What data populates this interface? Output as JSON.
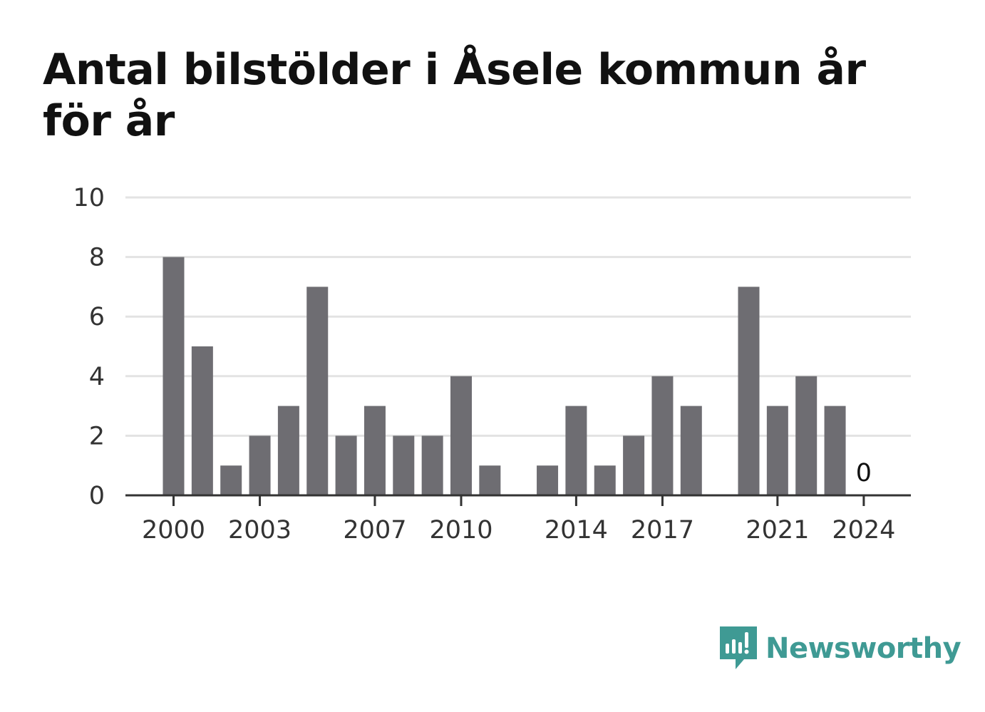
{
  "title": "Antal bilstölder i Åsele kommun år för år",
  "brand": {
    "name": "Newsworthy",
    "icon": "newsworthy-logo-icon",
    "color": "#3f9a94"
  },
  "colors": {
    "bar": "#6e6d72",
    "grid": "#e3e3e3",
    "axis": "#333333"
  },
  "chart_data": {
    "type": "bar",
    "title": "Antal bilstölder i Åsele kommun år för år",
    "xlabel": "",
    "ylabel": "",
    "categories": [
      2000,
      2001,
      2002,
      2003,
      2004,
      2005,
      2006,
      2007,
      2008,
      2009,
      2010,
      2011,
      2012,
      2013,
      2014,
      2015,
      2016,
      2017,
      2018,
      2019,
      2020,
      2021,
      2022,
      2023,
      2024
    ],
    "values": [
      8,
      5,
      1,
      2,
      3,
      7,
      2,
      3,
      2,
      2,
      4,
      1,
      0,
      1,
      3,
      1,
      2,
      4,
      3,
      0,
      7,
      3,
      4,
      3,
      0
    ],
    "ylim": [
      0,
      10
    ],
    "yticks": [
      0,
      2,
      4,
      6,
      8,
      10
    ],
    "xticks": [
      2000,
      2003,
      2007,
      2010,
      2014,
      2017,
      2021,
      2024
    ],
    "annotations": [
      {
        "x": 2024,
        "text": "0"
      }
    ],
    "grid": true,
    "legend": "none"
  }
}
